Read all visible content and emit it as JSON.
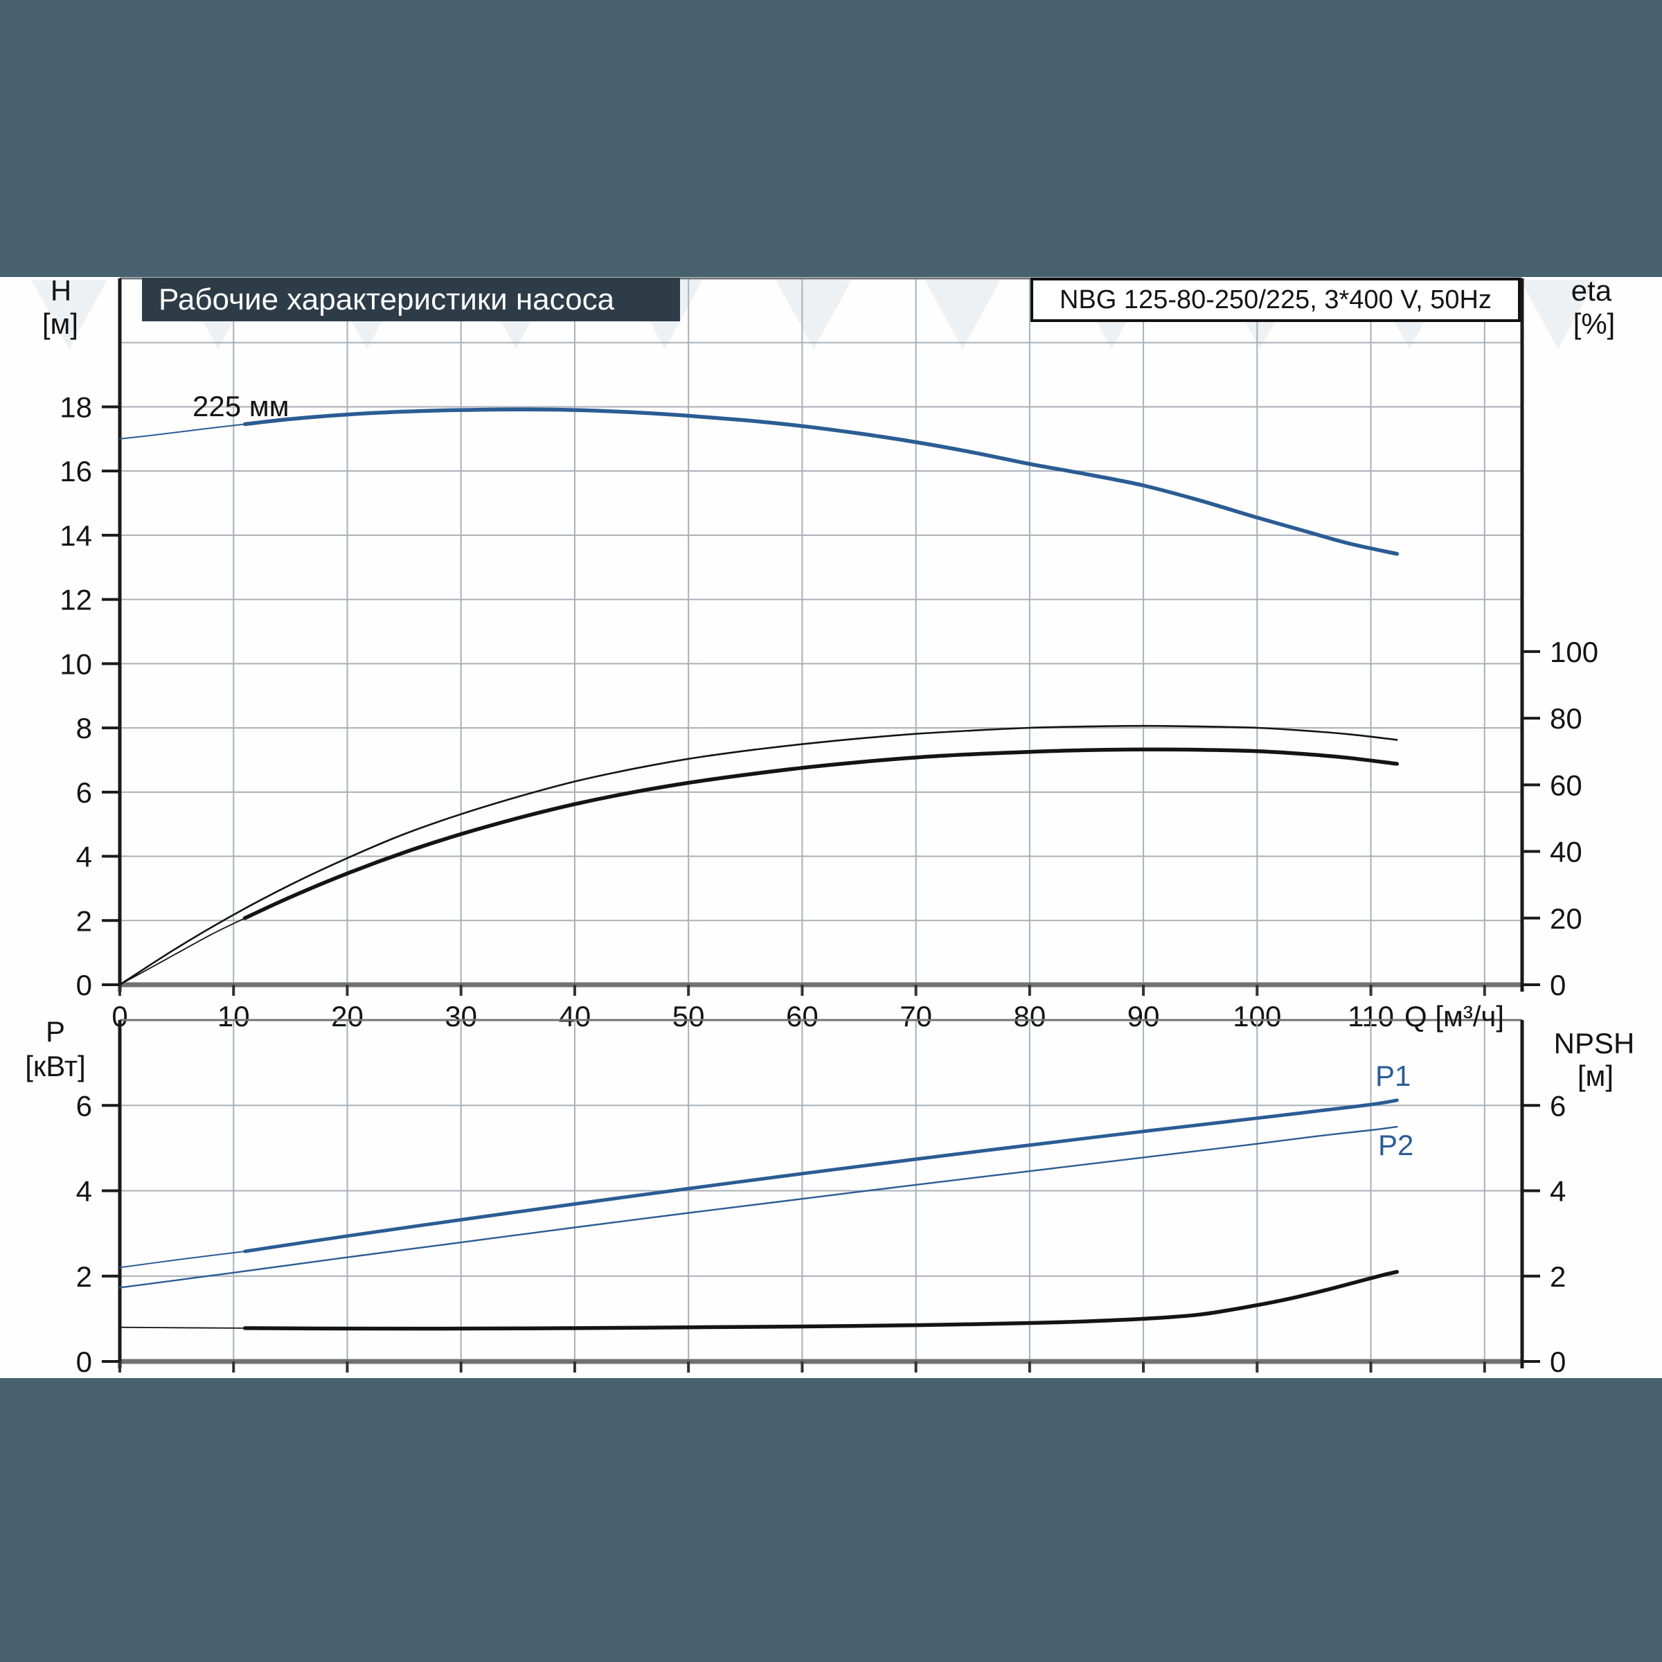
{
  "header": {
    "title": "Рабочие характеристики насоса",
    "model": "NBG 125-80-250/225, 3*400 V, 50Hz"
  },
  "labels": {
    "axes": {
      "top_left_unit_1": "H",
      "top_left_unit_2": "[м]",
      "top_right_unit_1": "eta",
      "top_right_unit_2": "[%]",
      "bottom_left_unit_1": "P",
      "bottom_left_unit_2": "[кВт]",
      "bottom_right_unit_1": "NPSH",
      "bottom_right_unit_2": "[м]",
      "flow_unit": "Q [м³/ч]"
    },
    "curve_labels": {
      "impeller": "225 мм",
      "p1": "P1",
      "p2": "P2"
    }
  },
  "colors": {
    "teal_background": "#47626e",
    "panel_background": "#fefefe",
    "title_box_bg": "#2e3c48",
    "title_box_text": "#ffffff",
    "grid": "#a9b0b7",
    "axis_dark": "#1a1a1a",
    "border_gray": "#6e7478",
    "x_axis_gray": "#717171",
    "curve_blue": "#2b5c94",
    "curve_black": "#141414",
    "label_blue": "#2b5c99"
  },
  "chart_data": [
    {
      "name": "head-efficiency-chart",
      "type": "line",
      "title": "Рабочие характеристики насоса",
      "xlabel": "Q [м³/ч]",
      "ylabel_left": "H [м]",
      "ylabel_right": "eta [%]",
      "x": {
        "min": 0,
        "max": 123.3,
        "gridlines_every": 10,
        "gridlines_max": 120,
        "tick_labels": [
          0,
          10,
          20,
          30,
          40,
          50,
          60,
          70,
          80,
          90,
          100,
          110
        ]
      },
      "y_left": {
        "min": 0,
        "max": 22,
        "gridlines_every": 2,
        "gridlines_max": 20,
        "tick_labels": [
          0,
          2,
          4,
          6,
          8,
          10,
          12,
          14,
          16,
          18
        ]
      },
      "y_right": {
        "min": 0,
        "max": 212,
        "tick_labels": [
          0,
          20,
          40,
          60,
          80,
          100
        ]
      },
      "series": [
        {
          "name": "head-curve-lowflow",
          "axis": "left",
          "color_key": "curve_blue",
          "stroke_width": 2,
          "points": [
            [
              0,
              17.0
            ],
            [
              3,
              17.12
            ],
            [
              6,
              17.25
            ],
            [
              9,
              17.38
            ],
            [
              11,
              17.46
            ]
          ]
        },
        {
          "name": "head-curve-225mm",
          "axis": "left",
          "color_key": "curve_blue",
          "stroke_width": 5.5,
          "points": [
            [
              11,
              17.46
            ],
            [
              15,
              17.62
            ],
            [
              20,
              17.76
            ],
            [
              25,
              17.85
            ],
            [
              30,
              17.9
            ],
            [
              35,
              17.92
            ],
            [
              40,
              17.9
            ],
            [
              45,
              17.83
            ],
            [
              50,
              17.72
            ],
            [
              55,
              17.58
            ],
            [
              60,
              17.4
            ],
            [
              65,
              17.17
            ],
            [
              70,
              16.9
            ],
            [
              75,
              16.58
            ],
            [
              80,
              16.22
            ],
            [
              85,
              15.9
            ],
            [
              90,
              15.55
            ],
            [
              95,
              15.08
            ],
            [
              100,
              14.55
            ],
            [
              104,
              14.15
            ],
            [
              108,
              13.75
            ],
            [
              112.3,
              13.42
            ]
          ]
        },
        {
          "name": "eta-pump",
          "axis": "right",
          "color_key": "curve_black",
          "stroke_width": 2.6,
          "points": [
            [
              0,
              0
            ],
            [
              5,
              11
            ],
            [
              10,
              21
            ],
            [
              15,
              30
            ],
            [
              20,
              38
            ],
            [
              25,
              45.2
            ],
            [
              30,
              51.2
            ],
            [
              35,
              56.4
            ],
            [
              40,
              61
            ],
            [
              45,
              64.7
            ],
            [
              50,
              67.8
            ],
            [
              55,
              70.2
            ],
            [
              60,
              72.2
            ],
            [
              65,
              73.9
            ],
            [
              70,
              75.3
            ],
            [
              75,
              76.3
            ],
            [
              80,
              77.1
            ],
            [
              85,
              77.5
            ],
            [
              90,
              77.7
            ],
            [
              95,
              77.5
            ],
            [
              100,
              77.1
            ],
            [
              104,
              76.3
            ],
            [
              108,
              75.2
            ],
            [
              112.3,
              73.5
            ]
          ]
        },
        {
          "name": "eta-total-lowflow",
          "axis": "right",
          "color_key": "curve_black",
          "stroke_width": 1.8,
          "points": [
            [
              0,
              0
            ],
            [
              4,
              7.5
            ],
            [
              8,
              15
            ],
            [
              11,
              20
            ]
          ]
        },
        {
          "name": "eta-total",
          "axis": "right",
          "color_key": "curve_black",
          "stroke_width": 5.5,
          "points": [
            [
              11,
              20
            ],
            [
              15,
              26.3
            ],
            [
              20,
              33.4
            ],
            [
              25,
              39.7
            ],
            [
              30,
              45.2
            ],
            [
              35,
              50
            ],
            [
              40,
              54.2
            ],
            [
              45,
              57.7
            ],
            [
              50,
              60.6
            ],
            [
              55,
              63
            ],
            [
              60,
              65.1
            ],
            [
              65,
              66.8
            ],
            [
              70,
              68.2
            ],
            [
              75,
              69.2
            ],
            [
              80,
              69.9
            ],
            [
              85,
              70.4
            ],
            [
              90,
              70.6
            ],
            [
              95,
              70.5
            ],
            [
              100,
              70.1
            ],
            [
              104,
              69.3
            ],
            [
              108,
              68.1
            ],
            [
              112.3,
              66.3
            ]
          ]
        }
      ]
    },
    {
      "name": "power-npsh-chart",
      "type": "line",
      "xlabel": "",
      "ylabel_left": "P [кВт]",
      "ylabel_right": "NPSH [м]",
      "x": {
        "min": 0,
        "max": 123.3,
        "gridlines_every": 10,
        "gridlines_max": 120,
        "tick_labels": []
      },
      "y_left": {
        "min": 0,
        "max": 8,
        "gridlines_every": 2,
        "gridlines_max": 6,
        "tick_labels": [
          0,
          2,
          4,
          6
        ]
      },
      "y_right": {
        "min": 0,
        "max": 8,
        "tick_labels": [
          0,
          2,
          4,
          6
        ]
      },
      "series": [
        {
          "name": "p1-lowflow",
          "axis": "left",
          "color_key": "curve_blue",
          "stroke_width": 2,
          "points": [
            [
              0,
              2.2
            ],
            [
              5,
              2.38
            ],
            [
              11,
              2.58
            ]
          ]
        },
        {
          "name": "p1",
          "axis": "left",
          "color_key": "curve_blue",
          "stroke_width": 5,
          "points": [
            [
              11,
              2.58
            ],
            [
              20,
              2.94
            ],
            [
              30,
              3.32
            ],
            [
              40,
              3.69
            ],
            [
              50,
              4.05
            ],
            [
              60,
              4.4
            ],
            [
              70,
              4.74
            ],
            [
              80,
              5.07
            ],
            [
              90,
              5.39
            ],
            [
              100,
              5.7
            ],
            [
              105,
              5.86
            ],
            [
              110,
              6.02
            ],
            [
              112.3,
              6.12
            ]
          ]
        },
        {
          "name": "p2",
          "axis": "left",
          "color_key": "curve_blue",
          "stroke_width": 2.4,
          "points": [
            [
              0,
              1.73
            ],
            [
              10,
              2.08
            ],
            [
              20,
              2.44
            ],
            [
              30,
              2.79
            ],
            [
              40,
              3.14
            ],
            [
              50,
              3.48
            ],
            [
              60,
              3.81
            ],
            [
              70,
              4.14
            ],
            [
              80,
              4.46
            ],
            [
              90,
              4.78
            ],
            [
              100,
              5.1
            ],
            [
              105,
              5.27
            ],
            [
              110,
              5.42
            ],
            [
              112.3,
              5.5
            ]
          ]
        },
        {
          "name": "npsh-lowflow",
          "axis": "right",
          "color_key": "curve_black",
          "stroke_width": 1.8,
          "points": [
            [
              0,
              0.8
            ],
            [
              5,
              0.79
            ],
            [
              11,
              0.78
            ]
          ]
        },
        {
          "name": "npsh",
          "axis": "right",
          "color_key": "curve_black",
          "stroke_width": 5.5,
          "points": [
            [
              11,
              0.78
            ],
            [
              20,
              0.77
            ],
            [
              30,
              0.77
            ],
            [
              40,
              0.78
            ],
            [
              50,
              0.8
            ],
            [
              60,
              0.82
            ],
            [
              70,
              0.85
            ],
            [
              80,
              0.9
            ],
            [
              85,
              0.94
            ],
            [
              90,
              1.0
            ],
            [
              95,
              1.1
            ],
            [
              100,
              1.32
            ],
            [
              103,
              1.48
            ],
            [
              106,
              1.67
            ],
            [
              109,
              1.88
            ],
            [
              111,
              2.02
            ],
            [
              112.3,
              2.1
            ]
          ]
        }
      ]
    }
  ]
}
